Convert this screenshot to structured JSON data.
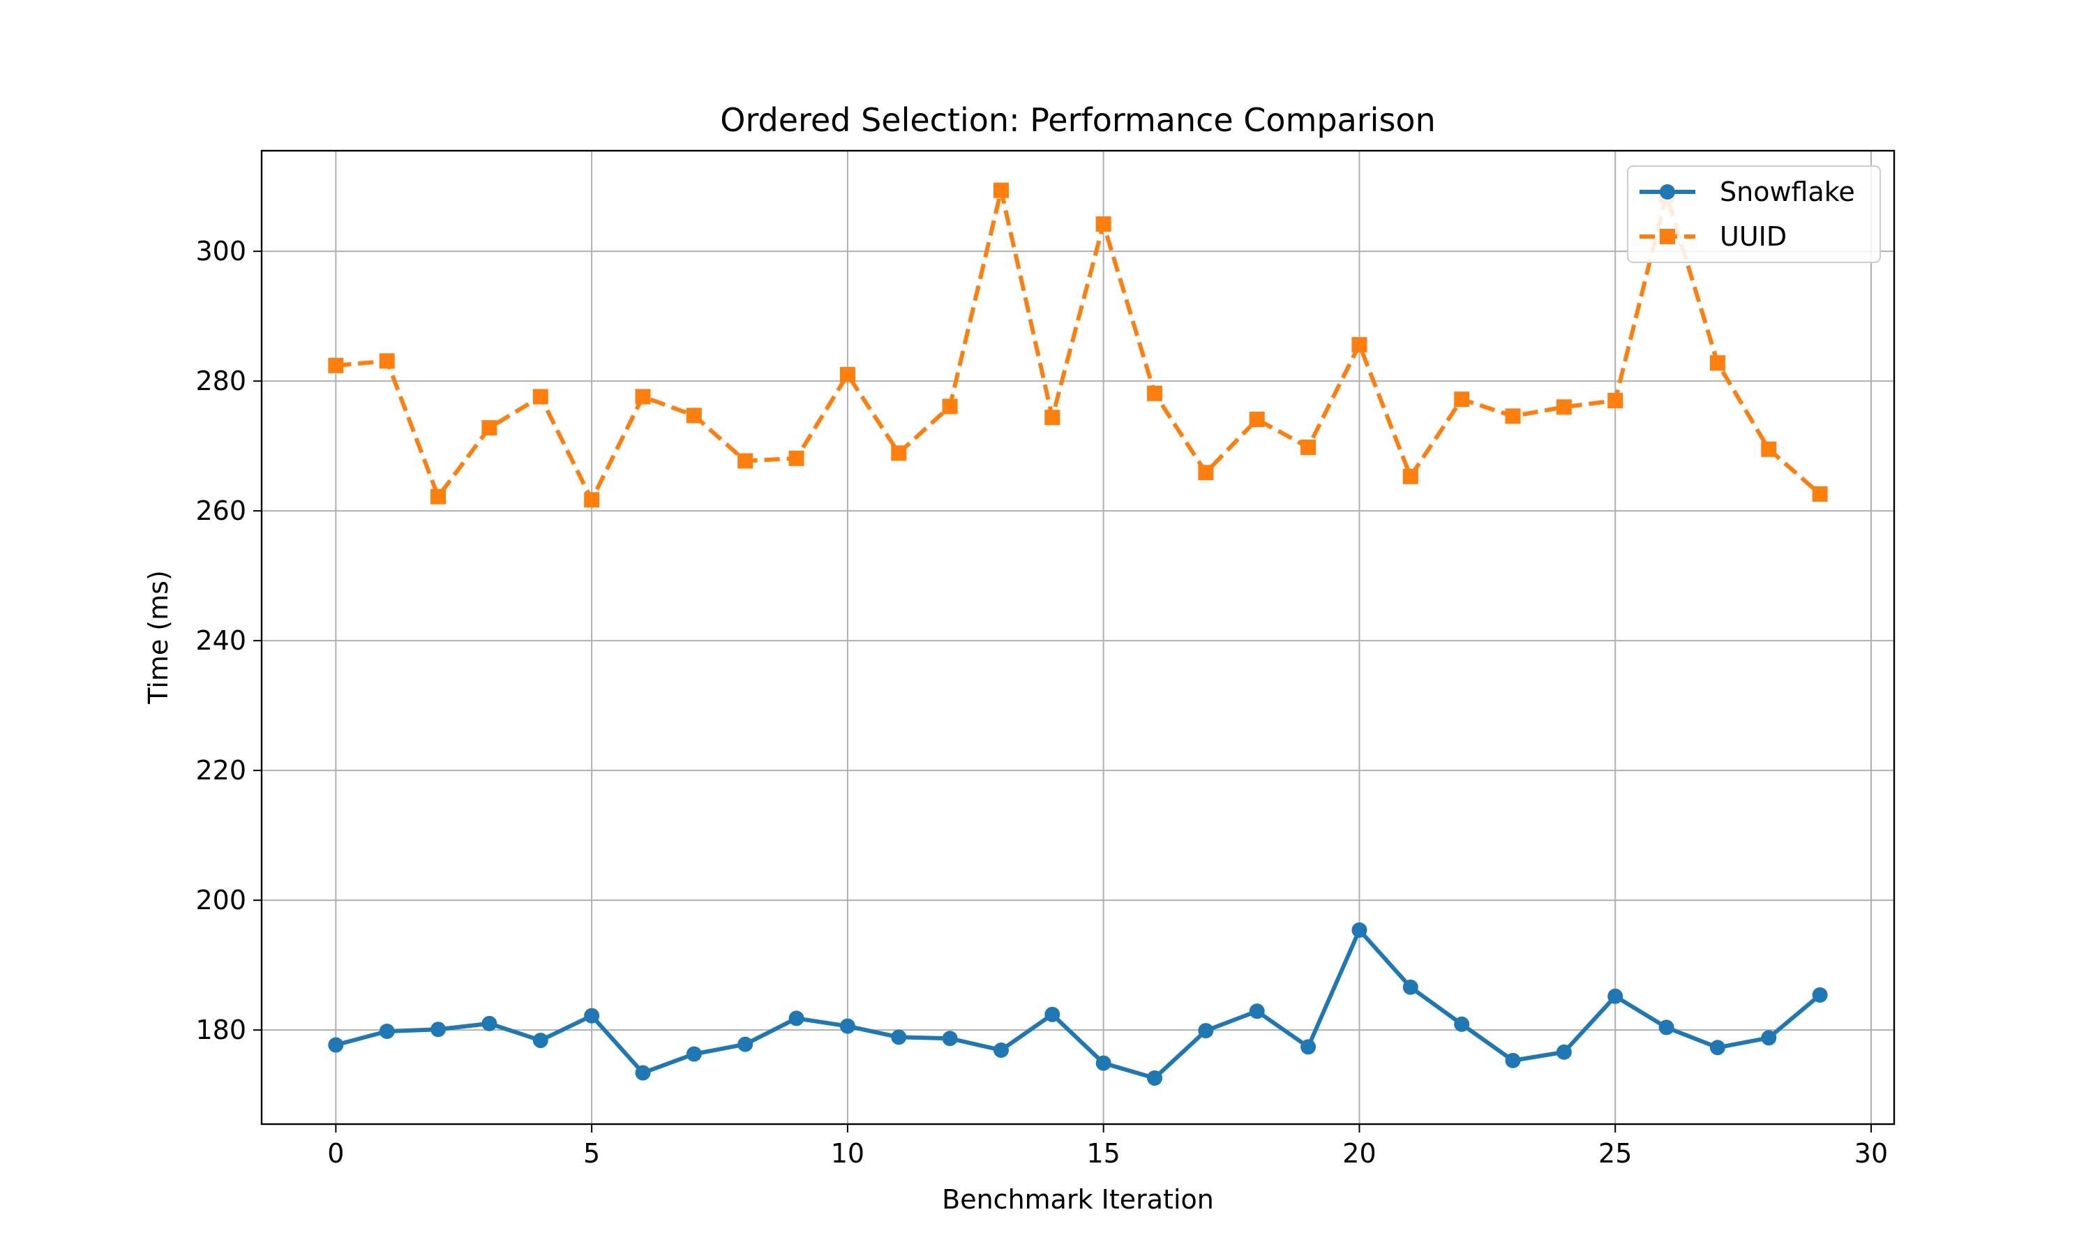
{
  "chart_data": {
    "type": "line",
    "title": "Ordered Selection: Performance Comparison",
    "xlabel": "Benchmark Iteration",
    "ylabel": "Time (ms)",
    "xlim": [
      -1.45,
      30.45
    ],
    "ylim": [
      165.5,
      315.5
    ],
    "xticks": [
      0,
      5,
      10,
      15,
      20,
      25,
      30
    ],
    "yticks": [
      180,
      200,
      220,
      240,
      260,
      280,
      300
    ],
    "grid": true,
    "legend_position": "top-right",
    "x": [
      0,
      1,
      2,
      3,
      4,
      5,
      6,
      7,
      8,
      9,
      10,
      11,
      12,
      13,
      14,
      15,
      16,
      17,
      18,
      19,
      20,
      21,
      22,
      23,
      24,
      25,
      26,
      27,
      28,
      29
    ],
    "series": [
      {
        "name": "Snowflake",
        "color": "#1f77b4",
        "line_style": "solid",
        "marker": "circle",
        "values": [
          177.7,
          179.8,
          180.1,
          181.0,
          178.4,
          182.2,
          173.4,
          176.3,
          177.8,
          181.8,
          180.6,
          178.9,
          178.7,
          176.9,
          182.4,
          174.9,
          172.6,
          179.9,
          182.9,
          177.4,
          195.4,
          186.6,
          180.9,
          175.3,
          176.6,
          185.2,
          180.4,
          177.3,
          178.8,
          185.4
        ]
      },
      {
        "name": "UUID",
        "color": "#ff7f0e",
        "line_style": "dashed",
        "marker": "square",
        "values": [
          282.4,
          283.1,
          262.2,
          272.8,
          277.6,
          261.7,
          277.6,
          274.7,
          267.7,
          268.1,
          281.0,
          268.9,
          276.1,
          309.4,
          274.4,
          304.2,
          278.1,
          265.9,
          274.1,
          269.8,
          285.6,
          265.3,
          277.2,
          274.6,
          276.0,
          277.0,
          308.7,
          282.8,
          269.5,
          262.6
        ]
      }
    ]
  }
}
